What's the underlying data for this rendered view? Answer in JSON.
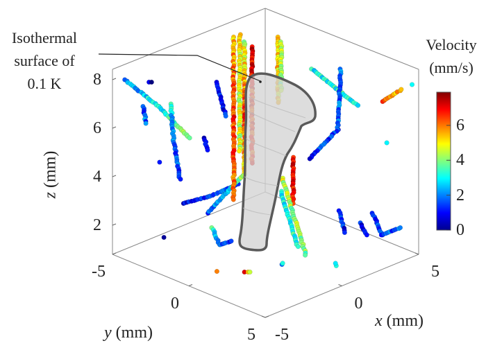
{
  "chart_data": {
    "type": "scatter3d",
    "xlabel": {
      "var": "x",
      "unit": "(mm)"
    },
    "ylabel": {
      "var": "y",
      "unit": "(mm)"
    },
    "zlabel": {
      "var": "z",
      "unit": "(mm)"
    },
    "xlim": [
      -5,
      5
    ],
    "ylim": [
      -5,
      5
    ],
    "zlim": [
      0.8,
      8.4
    ],
    "xticks": [
      "-5",
      "0",
      "5"
    ],
    "yticks": [
      "-5",
      "0",
      "5"
    ],
    "zticks": [
      "2",
      "4",
      "6",
      "8"
    ],
    "grid": false,
    "box": true,
    "colormap": "jet",
    "colorbar": {
      "title_line1": "Velocity",
      "title_line2": "(mm/s)",
      "range": [
        0,
        7.9
      ],
      "ticks": [
        "0",
        "2",
        "4",
        "6"
      ],
      "placement": "right"
    },
    "annotation": {
      "line1": "Isothermal",
      "line2": "surface of",
      "line3": "0.1 K"
    },
    "surface": {
      "label": "Isothermal surface of 0.1 K",
      "color": "#cfcfcf",
      "edge_color": "#555555"
    },
    "trajectories": [
      [
        [
          -4.6,
          -4.6,
          8.0,
          2.0
        ],
        [
          -3.5,
          -3.5,
          6.9,
          3.0
        ],
        [
          -2.5,
          -2.5,
          5.6,
          4.2
        ]
      ],
      [
        [
          -3.1,
          -3.1,
          7.0,
          3.0
        ],
        [
          -3.0,
          -3.0,
          5.5,
          1.8
        ],
        [
          -2.8,
          -2.8,
          3.9,
          1.5
        ]
      ],
      [
        [
          -4.0,
          -4.0,
          6.9,
          1.5
        ],
        [
          -3.9,
          -3.9,
          6.2,
          1.8
        ]
      ],
      [
        [
          -3.8,
          -3.8,
          7.9,
          0.5
        ],
        [
          -3.7,
          -3.7,
          7.9,
          0.5
        ]
      ],
      [
        [
          -2.7,
          -2.7,
          2.9,
          1.0
        ],
        [
          -1.8,
          -1.8,
          3.2,
          1.2
        ],
        [
          -0.9,
          -0.9,
          3.7,
          1.8
        ]
      ],
      [
        [
          -1.9,
          -1.9,
          2.5,
          1.5
        ],
        [
          -1.3,
          -1.3,
          3.3,
          2.5
        ],
        [
          -0.7,
          -0.7,
          4.1,
          4.0
        ]
      ],
      [
        [
          -1.75,
          -1.75,
          1.9,
          3.5
        ],
        [
          -1.5,
          -1.5,
          1.2,
          1.5
        ],
        [
          -1.1,
          -1.1,
          1.35,
          1.2
        ]
      ],
      [
        [
          1.95,
          -4.05,
          8.2,
          5.5
        ],
        [
          1.95,
          -4.05,
          5.0,
          6.5
        ],
        [
          1.95,
          -4.05,
          1.5,
          6.0
        ]
      ],
      [
        [
          2.3,
          -3.7,
          8.0,
          4.5
        ],
        [
          2.3,
          -3.7,
          5.0,
          6.5
        ],
        [
          2.3,
          -3.7,
          2.5,
          5.0
        ]
      ],
      [
        [
          2.55,
          -3.45,
          7.8,
          7.0
        ],
        [
          2.55,
          -3.45,
          3.0,
          6.5
        ]
      ],
      [
        [
          2.15,
          -3.85,
          8.3,
          5.0
        ],
        [
          2.15,
          -3.85,
          3.5,
          4.5
        ]
      ],
      [
        [
          3.4,
          -2.6,
          8.2,
          5.5
        ],
        [
          3.4,
          -2.6,
          5.5,
          5.0
        ]
      ],
      [
        [
          3.5,
          -2.5,
          8.0,
          4.5
        ],
        [
          3.5,
          -2.5,
          6.0,
          4.0
        ]
      ],
      [
        [
          0.9,
          0.9,
          4.8,
          7.2
        ],
        [
          0.9,
          0.9,
          2.9,
          6.8
        ]
      ],
      [
        [
          -0.45,
          1.55,
          4.46,
          4.5
        ],
        [
          0.32,
          2.32,
          1.29,
          3.8
        ]
      ],
      [
        [
          0.5,
          0.5,
          3.4,
          3.0
        ],
        [
          0.9,
          1.2,
          1.2,
          3.2
        ]
      ],
      [
        [
          3.5,
          -0.5,
          7.4,
          3.0
        ],
        [
          5.0,
          1.0,
          5.9,
          3.2
        ]
      ],
      [
        [
          4.45,
          0.45,
          7.4,
          2.0
        ],
        [
          4.35,
          0.35,
          4.9,
          1.5
        ],
        [
          3.43,
          -0.57,
          3.7,
          1.2
        ]
      ],
      [
        [
          2.4,
          2.4,
          2.6,
          1.0
        ],
        [
          2.6,
          2.6,
          1.7,
          1.2
        ]
      ],
      [
        [
          3.5,
          3.5,
          2.5,
          1.5
        ],
        [
          3.8,
          3.8,
          1.6,
          1.2
        ],
        [
          4.4,
          4.4,
          1.9,
          2.0
        ]
      ],
      [
        [
          3.1,
          3.1,
          2.1,
          1.0
        ],
        [
          3.3,
          3.3,
          1.6,
          1.0
        ]
      ],
      [
        [
          3.8,
          3.8,
          7.1,
          6.5
        ],
        [
          4.45,
          4.45,
          7.6,
          5.5
        ]
      ],
      [
        [
          -1.6,
          -1.6,
          7.9,
          1.0
        ],
        [
          -1.3,
          -1.3,
          6.5,
          1.2
        ]
      ],
      [
        [
          -2.0,
          -2.0,
          5.6,
          1.0
        ],
        [
          -1.9,
          -1.9,
          5.1,
          1.2
        ]
      ],
      [
        [
          3.95,
          3.95,
          5.4,
          2.5
        ]
      ],
      [
        [
          4.8,
          4.8,
          7.8,
          3.0
        ]
      ],
      [
        [
          -3.45,
          -3.45,
          4.6,
          0.8
        ]
      ],
      [
        [
          -3.3,
          -3.3,
          1.5,
          0.5
        ]
      ],
      [
        [
          -2.94,
          -0.24,
          0.8,
          6.0
        ]
      ],
      [
        [
          -2.08,
          0.72,
          0.8,
          6.5
        ],
        [
          -1.9,
          0.9,
          0.8,
          4.5
        ]
      ],
      [
        [
          -0.25,
          1.35,
          0.8,
          2.0
        ],
        [
          -0.25,
          1.35,
          0.85,
          3.0
        ]
      ],
      [
        [
          1.4,
          3.2,
          0.8,
          2.5
        ],
        [
          1.4,
          3.2,
          0.9,
          3.0
        ]
      ]
    ]
  }
}
